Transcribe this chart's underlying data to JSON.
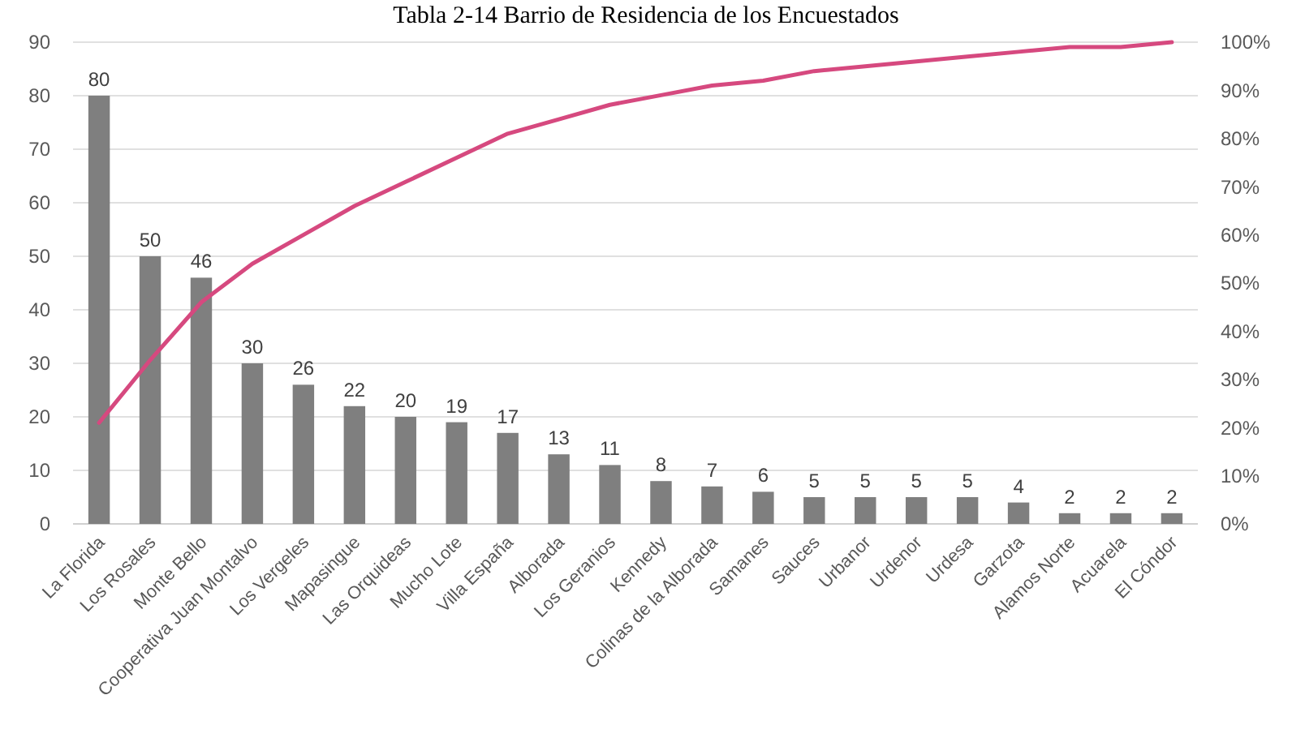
{
  "chart_data": {
    "type": "bar",
    "title": "Tabla 2-14 Barrio de Residencia de los Encuestados",
    "categories": [
      "La Florida",
      "Los Rosales",
      "Monte Bello",
      "Cooperativa Juan Montalvo",
      "Los Vergeles",
      "Mapasingue",
      "Las Orquideas",
      "Mucho Lote",
      "Villa España",
      "Alborada",
      "Los Geranios",
      "Kennedy",
      "Colinas de la Alborada",
      "Samanes",
      "Sauces",
      "Urbanor",
      "Urdenor",
      "Urdesa",
      "Garzota",
      "Alamos Norte",
      "Acuarela",
      "El Cóndor"
    ],
    "series": [
      {
        "color": "#7f7f7f",
        "values": [
          80,
          50,
          46,
          30,
          26,
          22,
          20,
          19,
          17,
          13,
          11,
          8,
          7,
          6,
          5,
          5,
          5,
          5,
          4,
          2,
          2,
          2
        ],
        "value_labels": [
          "80",
          "50",
          "46",
          "30",
          "26",
          "22",
          "20",
          "19",
          "17",
          "13",
          "11",
          "8",
          "7",
          "6",
          "5",
          "5",
          "5",
          "5",
          "4",
          "2",
          "2",
          "2"
        ]
      },
      {
        "type": "line",
        "axis": "y2",
        "color": "#d6497f",
        "values": [
          21,
          34,
          46,
          54,
          60,
          66,
          71,
          76,
          81,
          84,
          87,
          89,
          91,
          92,
          94,
          95,
          96,
          97,
          98,
          99,
          99,
          100
        ]
      }
    ],
    "ylim": [
      0,
      90
    ],
    "yticks": [
      0,
      10,
      20,
      30,
      40,
      50,
      60,
      70,
      80,
      90
    ],
    "y2lim": [
      0,
      100
    ],
    "y2ticks": [
      {
        "value": 0,
        "label": "0%"
      },
      {
        "value": 10,
        "label": "10%"
      },
      {
        "value": 20,
        "label": "20%"
      },
      {
        "value": 30,
        "label": "30%"
      },
      {
        "value": 40,
        "label": "40%"
      },
      {
        "value": 50,
        "label": "50%"
      },
      {
        "value": 60,
        "label": "60%"
      },
      {
        "value": 70,
        "label": "70%"
      },
      {
        "value": 80,
        "label": "80%"
      },
      {
        "value": 90,
        "label": "90%"
      },
      {
        "value": 100,
        "label": "100%"
      }
    ],
    "grid": "y",
    "marker": "none",
    "line_style": "solid"
  }
}
